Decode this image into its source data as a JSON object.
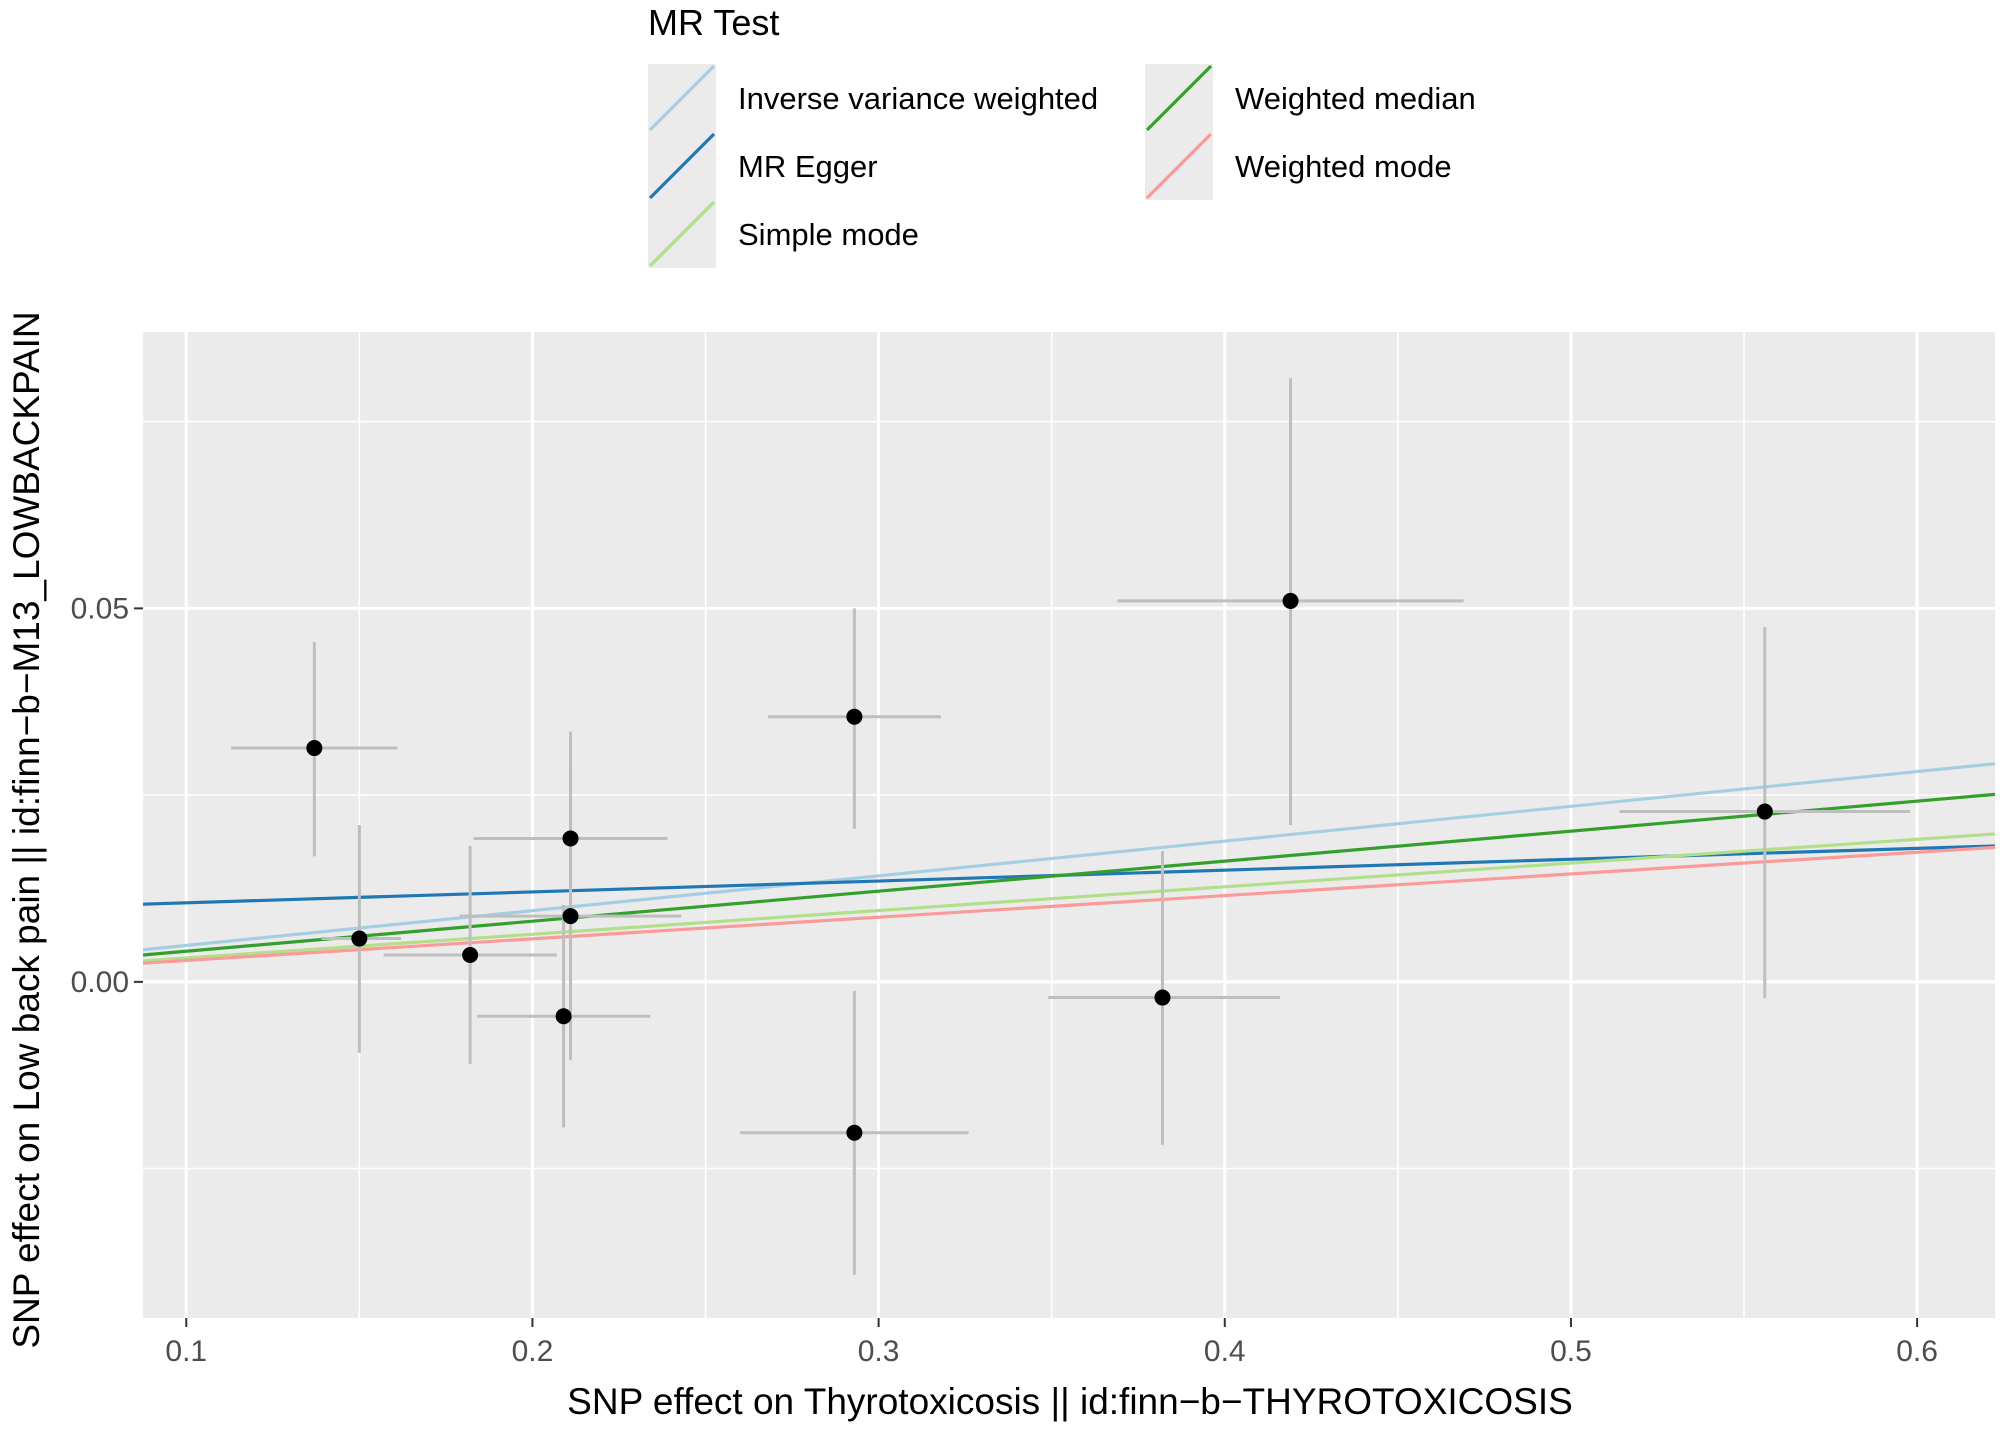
{
  "chart_data": {
    "type": "scatter",
    "xlabel": "SNP effect on Thyrotoxicosis || id:finn−b−THYROTOXICOSIS",
    "ylabel": "SNP effect on Low back pain || id:finn−b−M13_LOWBACKPAIN",
    "xlim": [
      0.0875,
      0.6225
    ],
    "ylim": [
      -0.045,
      0.087
    ],
    "x_ticks": [
      0.1,
      0.2,
      0.3,
      0.4,
      0.5,
      0.6
    ],
    "x_tick_labels": [
      "0.1",
      "0.2",
      "0.3",
      "0.4",
      "0.5",
      "0.6"
    ],
    "y_ticks": [
      0.0,
      0.05
    ],
    "y_tick_labels": [
      "0.00",
      "0.05"
    ],
    "grid": true,
    "legend": {
      "title": "MR Test",
      "placement": "top",
      "entries": [
        {
          "label": "Inverse variance weighted",
          "color": "#A6CEE3"
        },
        {
          "label": "MR Egger",
          "color": "#1F78B4"
        },
        {
          "label": "Simple mode",
          "color": "#B2DF8A"
        },
        {
          "label": "Weighted median",
          "color": "#33A02C"
        },
        {
          "label": "Weighted mode",
          "color": "#FB9A99"
        }
      ]
    },
    "points": [
      {
        "x": 0.137,
        "y": 0.0313,
        "x_lo": 0.113,
        "x_hi": 0.161,
        "y_lo": 0.0168,
        "y_hi": 0.0455
      },
      {
        "x": 0.15,
        "y": 0.0058,
        "x_lo": 0.139,
        "x_hi": 0.162,
        "y_lo": -0.0095,
        "y_hi": 0.021
      },
      {
        "x": 0.182,
        "y": 0.0036,
        "x_lo": 0.157,
        "x_hi": 0.207,
        "y_lo": -0.011,
        "y_hi": 0.0182
      },
      {
        "x": 0.209,
        "y": -0.0046,
        "x_lo": 0.184,
        "x_hi": 0.234,
        "y_lo": -0.0195,
        "y_hi": 0.0103
      },
      {
        "x": 0.211,
        "y": 0.0192,
        "x_lo": 0.183,
        "x_hi": 0.239,
        "y_lo": 0.0052,
        "y_hi": 0.0335
      },
      {
        "x": 0.211,
        "y": 0.0088,
        "x_lo": 0.179,
        "x_hi": 0.243,
        "y_lo": -0.0105,
        "y_hi": 0.0288
      },
      {
        "x": 0.293,
        "y": 0.0355,
        "x_lo": 0.268,
        "x_hi": 0.318,
        "y_lo": 0.0205,
        "y_hi": 0.05
      },
      {
        "x": 0.293,
        "y": -0.0202,
        "x_lo": 0.26,
        "x_hi": 0.326,
        "y_lo": -0.0392,
        "y_hi": -0.0012
      },
      {
        "x": 0.382,
        "y": -0.0021,
        "x_lo": 0.349,
        "x_hi": 0.416,
        "y_lo": -0.0218,
        "y_hi": 0.0175
      },
      {
        "x": 0.419,
        "y": 0.051,
        "x_lo": 0.369,
        "x_hi": 0.469,
        "y_lo": 0.021,
        "y_hi": 0.0808
      },
      {
        "x": 0.556,
        "y": 0.0228,
        "x_lo": 0.514,
        "x_hi": 0.598,
        "y_lo": -0.0022,
        "y_hi": 0.0475
      }
    ],
    "lines": [
      {
        "label": "Inverse variance weighted",
        "color": "#A6CEE3",
        "x": [
          0.0875,
          0.6225
        ],
        "y": [
          0.0043,
          0.0292
        ]
      },
      {
        "label": "MR Egger",
        "color": "#1F78B4",
        "x": [
          0.0875,
          0.6225
        ],
        "y": [
          0.0104,
          0.0182
        ]
      },
      {
        "label": "Simple mode",
        "color": "#B2DF8A",
        "x": [
          0.0875,
          0.6225
        ],
        "y": [
          0.0028,
          0.0198
        ]
      },
      {
        "label": "Weighted median",
        "color": "#33A02C",
        "x": [
          0.0875,
          0.6225
        ],
        "y": [
          0.0036,
          0.0251
        ]
      },
      {
        "label": "Weighted mode",
        "color": "#FB9A99",
        "x": [
          0.0875,
          0.6225
        ],
        "y": [
          0.0025,
          0.018
        ]
      }
    ]
  }
}
